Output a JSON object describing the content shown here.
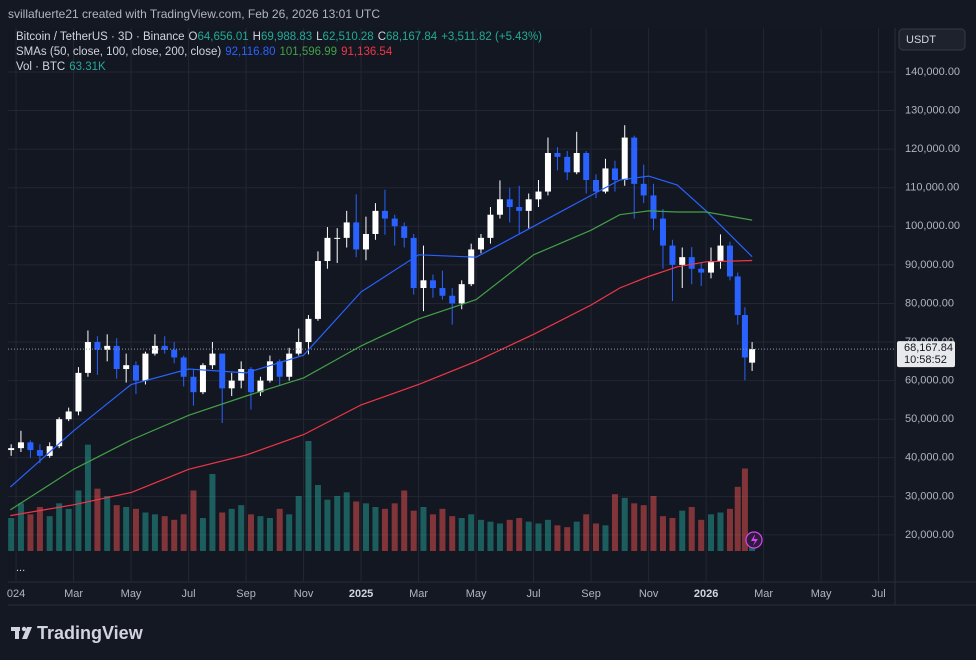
{
  "header": {
    "credit": "svillafuerte21 created with TradingView.com, Feb 26, 2026 13:01 UTC"
  },
  "footer": {
    "brand": "TradingView",
    "more": "..."
  },
  "chart_data": {
    "type": "candlestick",
    "symbol": "Bitcoin / TetherUS · 3D · Binance",
    "ohlc": [
      {
        "key": "O",
        "value": "64,656.01"
      },
      {
        "key": "H",
        "value": "69,988.83"
      },
      {
        "key": "L",
        "value": "62,510.28"
      },
      {
        "key": "C",
        "value": "68,167.84"
      }
    ],
    "change": "+3,511.82 (+5.43%)",
    "currency": "USDT",
    "last_price_label": "68,167.84",
    "countdown": "10:58:52",
    "up_color": "#ffffff",
    "down_color": "#2962ff",
    "grid": true,
    "xlim": [
      -0.28,
      30.57
    ],
    "xticks": [
      {
        "value": 0,
        "label": "024"
      },
      {
        "value": 2,
        "label": "Mar"
      },
      {
        "value": 4,
        "label": "May"
      },
      {
        "value": 6,
        "label": "Jul"
      },
      {
        "value": 8,
        "label": "Sep"
      },
      {
        "value": 10,
        "label": "Nov"
      },
      {
        "value": 12,
        "label": "2025"
      },
      {
        "value": 14,
        "label": "Mar"
      },
      {
        "value": 16,
        "label": "May"
      },
      {
        "value": 18,
        "label": "Jul"
      },
      {
        "value": 20,
        "label": "Sep"
      },
      {
        "value": 22,
        "label": "Nov"
      },
      {
        "value": 24,
        "label": "2026"
      },
      {
        "value": 26,
        "label": "Mar"
      },
      {
        "value": 28,
        "label": "May"
      },
      {
        "value": 30,
        "label": "Jul"
      }
    ],
    "ylim": [
      7800,
      151400
    ],
    "yticks": [
      {
        "value": 20000,
        "label": "20,000.00"
      },
      {
        "value": 30000,
        "label": "30,000.00"
      },
      {
        "value": 40000,
        "label": "40,000.00"
      },
      {
        "value": 50000,
        "label": "50,000.00"
      },
      {
        "value": 60000,
        "label": "60,000.00"
      },
      {
        "value": 70000,
        "label": "70,000.00"
      },
      {
        "value": 80000,
        "label": "80,000.00"
      },
      {
        "value": 90000,
        "label": "90,000.00"
      },
      {
        "value": 100000,
        "label": "100,000.00"
      },
      {
        "value": 110000,
        "label": "110,000.00"
      },
      {
        "value": 120000,
        "label": "120,000.00"
      },
      {
        "value": 130000,
        "label": "130,000.00"
      },
      {
        "value": 140000,
        "label": "140,000.00"
      }
    ],
    "x": [
      -0.17,
      0.17,
      0.5,
      0.83,
      1.17,
      1.5,
      1.83,
      2.17,
      2.5,
      2.83,
      3.17,
      3.5,
      3.83,
      4.17,
      4.5,
      4.83,
      5.17,
      5.5,
      5.83,
      6.17,
      6.5,
      6.83,
      7.17,
      7.5,
      7.83,
      8.17,
      8.5,
      8.83,
      9.17,
      9.5,
      9.83,
      10.17,
      10.5,
      10.83,
      11.17,
      11.5,
      11.83,
      12.17,
      12.5,
      12.83,
      13.17,
      13.5,
      13.83,
      14.17,
      14.5,
      14.83,
      15.17,
      15.5,
      15.83,
      16.17,
      16.5,
      16.83,
      17.17,
      17.5,
      17.83,
      18.17,
      18.5,
      18.83,
      19.17,
      19.5,
      19.83,
      20.17,
      20.5,
      20.83,
      21.17,
      21.5,
      21.83,
      22.17,
      22.5,
      22.83,
      23.17,
      23.5,
      23.83,
      24.17,
      24.5,
      24.83,
      25.1,
      25.35,
      25.6
    ],
    "candles": [
      [
        42000,
        43500,
        40500,
        42500
      ],
      [
        42500,
        47000,
        41500,
        44000
      ],
      [
        44000,
        44500,
        40000,
        42000
      ],
      [
        42000,
        43500,
        38600,
        40500
      ],
      [
        40500,
        44000,
        40000,
        43000
      ],
      [
        43000,
        50500,
        42500,
        50000
      ],
      [
        50000,
        53000,
        49500,
        52000
      ],
      [
        52000,
        63500,
        51000,
        62000
      ],
      [
        62000,
        73000,
        61000,
        70000
      ],
      [
        70000,
        71500,
        61500,
        68000
      ],
      [
        68000,
        72000,
        65000,
        69000
      ],
      [
        69000,
        71000,
        60500,
        63000
      ],
      [
        63000,
        67000,
        59500,
        64000
      ],
      [
        64000,
        65000,
        56500,
        60000
      ],
      [
        60000,
        67500,
        59000,
        67000
      ],
      [
        67000,
        72000,
        66500,
        69000
      ],
      [
        69000,
        71500,
        67000,
        68000
      ],
      [
        68000,
        70000,
        64500,
        66000
      ],
      [
        66000,
        66500,
        58500,
        61000
      ],
      [
        61000,
        63000,
        53500,
        57000
      ],
      [
        57000,
        64500,
        56500,
        64000
      ],
      [
        64000,
        70000,
        63000,
        67000
      ],
      [
        67000,
        67000,
        49000,
        58000
      ],
      [
        58000,
        62000,
        56000,
        60000
      ],
      [
        60000,
        65000,
        58000,
        63000
      ],
      [
        63000,
        63500,
        52500,
        57000
      ],
      [
        57000,
        61000,
        56000,
        60000
      ],
      [
        60000,
        66500,
        59500,
        65000
      ],
      [
        65000,
        65500,
        58900,
        61000
      ],
      [
        61000,
        68500,
        60000,
        67000
      ],
      [
        67000,
        73500,
        66500,
        70000
      ],
      [
        70000,
        77000,
        66800,
        76000
      ],
      [
        76000,
        93500,
        75500,
        91000
      ],
      [
        91000,
        99800,
        89000,
        97000
      ],
      [
        97000,
        99500,
        90500,
        97000
      ],
      [
        97000,
        104000,
        94500,
        101000
      ],
      [
        101000,
        108300,
        92000,
        94000
      ],
      [
        94000,
        102500,
        91200,
        98000
      ],
      [
        98000,
        106000,
        96500,
        104000
      ],
      [
        104000,
        109500,
        97800,
        102000
      ],
      [
        102000,
        103000,
        95000,
        100000
      ],
      [
        100000,
        101000,
        94500,
        97000
      ],
      [
        97000,
        98000,
        82300,
        84000
      ],
      [
        84000,
        95000,
        78000,
        86000
      ],
      [
        86000,
        87500,
        81500,
        84000
      ],
      [
        84000,
        88500,
        81000,
        82000
      ],
      [
        82000,
        84000,
        74500,
        80000
      ],
      [
        80000,
        86000,
        78500,
        85000
      ],
      [
        85000,
        95500,
        84500,
        94000
      ],
      [
        94000,
        98000,
        93000,
        97000
      ],
      [
        97000,
        105000,
        95500,
        103000
      ],
      [
        103000,
        111900,
        102000,
        107000
      ],
      [
        107000,
        110000,
        101000,
        105000
      ],
      [
        105000,
        110500,
        98200,
        104000
      ],
      [
        104000,
        108500,
        99500,
        107000
      ],
      [
        107000,
        112000,
        105000,
        109000
      ],
      [
        109000,
        123000,
        108000,
        119000
      ],
      [
        119000,
        120500,
        114500,
        118000
      ],
      [
        118000,
        119500,
        112000,
        114000
      ],
      [
        114000,
        124500,
        113500,
        119000
      ],
      [
        119000,
        119500,
        108500,
        112000
      ],
      [
        112000,
        113500,
        107300,
        109000
      ],
      [
        109000,
        117500,
        108500,
        115000
      ],
      [
        115000,
        117000,
        109000,
        112000
      ],
      [
        112000,
        126200,
        110500,
        123000
      ],
      [
        123000,
        123500,
        102000,
        111000
      ],
      [
        111000,
        116000,
        106000,
        108000
      ],
      [
        108000,
        111000,
        99000,
        102000
      ],
      [
        102000,
        104500,
        89000,
        95000
      ],
      [
        95000,
        96500,
        80600,
        90000
      ],
      [
        90000,
        94500,
        84000,
        92000
      ],
      [
        92000,
        94600,
        85000,
        89000
      ],
      [
        89000,
        90500,
        84500,
        88000
      ],
      [
        88000,
        94500,
        86500,
        91000
      ],
      [
        91000,
        97900,
        89000,
        95000
      ],
      [
        95000,
        96000,
        86000,
        87000
      ],
      [
        87000,
        88000,
        74500,
        77000
      ],
      [
        77000,
        79000,
        60100,
        66000
      ],
      [
        64656.01,
        69988.83,
        62510.28,
        68167.84
      ]
    ],
    "volume": {
      "name": "Vol · BTC",
      "last_label": "63.31K",
      "ylim": [
        0,
        600000
      ],
      "up_color": "#26a69a",
      "down_color": "#ef5350",
      "values": [
        180000,
        260000,
        200000,
        240000,
        190000,
        260000,
        230000,
        330000,
        580000,
        340000,
        300000,
        250000,
        240000,
        230000,
        210000,
        200000,
        190000,
        170000,
        200000,
        330000,
        180000,
        420000,
        210000,
        230000,
        250000,
        200000,
        190000,
        180000,
        230000,
        200000,
        300000,
        600000,
        360000,
        280000,
        300000,
        320000,
        270000,
        260000,
        240000,
        230000,
        260000,
        330000,
        220000,
        240000,
        200000,
        230000,
        190000,
        180000,
        200000,
        170000,
        160000,
        150000,
        170000,
        180000,
        160000,
        150000,
        170000,
        140000,
        130000,
        160000,
        200000,
        150000,
        140000,
        310000,
        290000,
        260000,
        250000,
        300000,
        190000,
        180000,
        220000,
        240000,
        170000,
        200000,
        210000,
        230000,
        350000,
        450000,
        63310
      ]
    },
    "sma": {
      "label": "SMAs (50, close, 100, close, 200, close)",
      "x": [
        -0.2,
        2,
        4,
        6,
        8,
        10,
        12,
        14,
        16,
        18,
        20,
        21,
        22,
        23,
        24,
        25.6
      ],
      "series": [
        {
          "color": "#2962ff",
          "value_label": "92,116.80",
          "values": [
            32400,
            47000,
            59000,
            63000,
            62000,
            66600,
            83000,
            92600,
            92000,
            100000,
            108000,
            112000,
            113000,
            110700,
            104000,
            92116.8
          ]
        },
        {
          "color": "#43a047",
          "value_label": "101,596.99",
          "values": [
            26500,
            37000,
            44600,
            51000,
            56000,
            60700,
            69000,
            76000,
            81000,
            92600,
            99000,
            103000,
            104000,
            103700,
            103700,
            101596.99
          ]
        },
        {
          "color": "#f23645",
          "value_label": "91,136.54",
          "values": [
            25000,
            27800,
            31000,
            37000,
            40700,
            46000,
            53700,
            59000,
            65000,
            72000,
            79600,
            84000,
            87000,
            89500,
            90800,
            91136.54
          ]
        }
      ]
    }
  }
}
